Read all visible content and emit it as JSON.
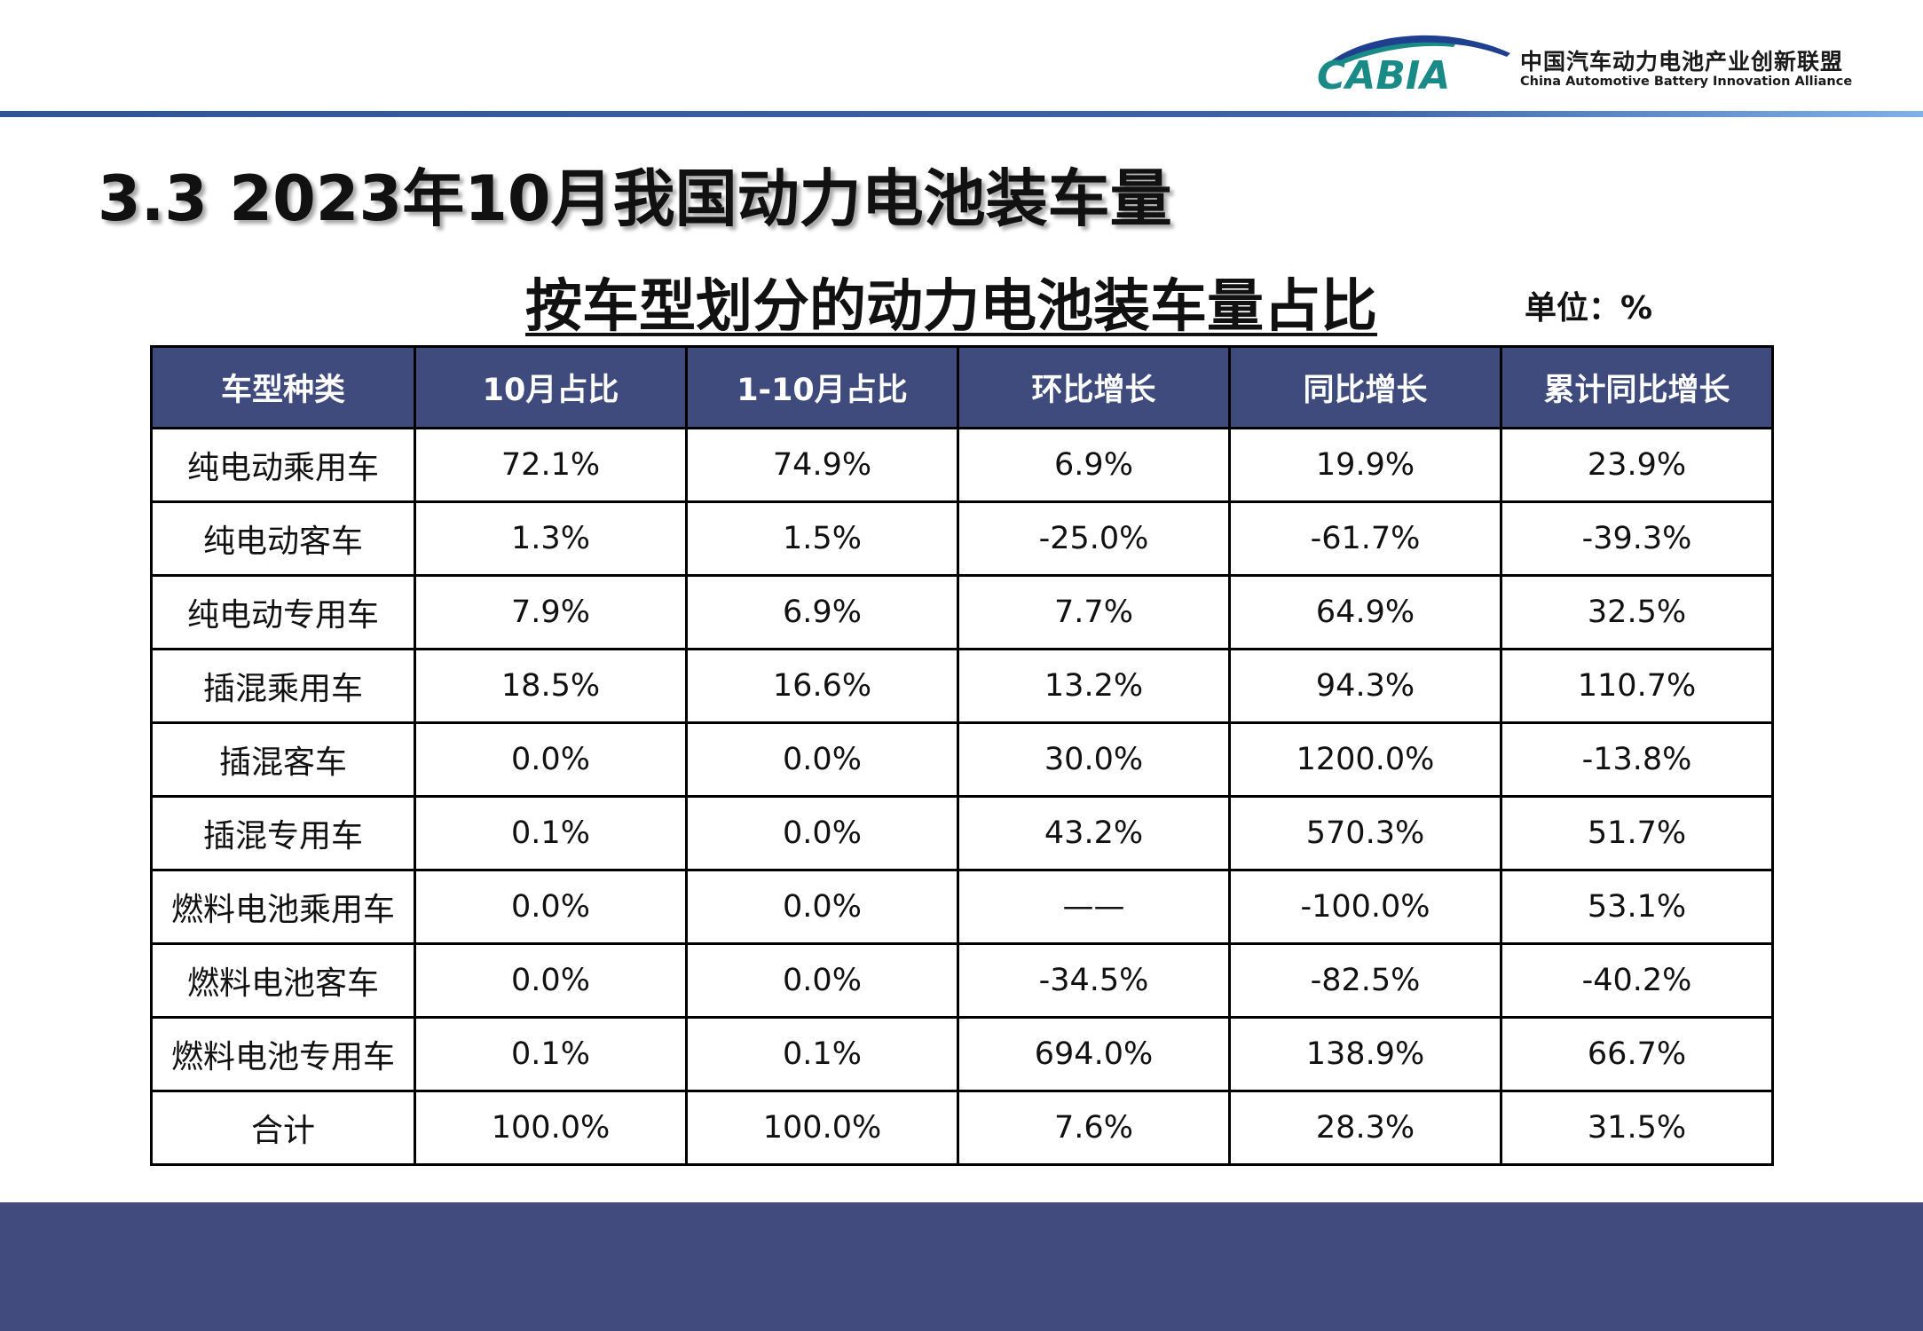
{
  "logo": {
    "abbr": "CABIA",
    "org_cn": "中国汽车动力电池产业创新联盟",
    "org_en": "China Automotive Battery Innovation Alliance"
  },
  "page_title": "3.3 2023年10月我国动力电池装车量",
  "table_title": "按车型划分的动力电池装车量占比",
  "unit_label": "单位：%",
  "table": {
    "headers": [
      "车型种类",
      "10月占比",
      "1-10月占比",
      "环比增长",
      "同比增长",
      "累计同比增长"
    ],
    "rows": [
      [
        "纯电动乘用车",
        "72.1%",
        "74.9%",
        "6.9%",
        "19.9%",
        "23.9%"
      ],
      [
        "纯电动客车",
        "1.3%",
        "1.5%",
        "-25.0%",
        "-61.7%",
        "-39.3%"
      ],
      [
        "纯电动专用车",
        "7.9%",
        "6.9%",
        "7.7%",
        "64.9%",
        "32.5%"
      ],
      [
        "插混乘用车",
        "18.5%",
        "16.6%",
        "13.2%",
        "94.3%",
        "110.7%"
      ],
      [
        "插混客车",
        "0.0%",
        "0.0%",
        "30.0%",
        "1200.0%",
        "-13.8%"
      ],
      [
        "插混专用车",
        "0.1%",
        "0.0%",
        "43.2%",
        "570.3%",
        "51.7%"
      ],
      [
        "燃料电池乘用车",
        "0.0%",
        "0.0%",
        "——",
        "-100.0%",
        "53.1%"
      ],
      [
        "燃料电池客车",
        "0.0%",
        "0.0%",
        "-34.5%",
        "-82.5%",
        "-40.2%"
      ],
      [
        "燃料电池专用车",
        "0.1%",
        "0.1%",
        "694.0%",
        "138.9%",
        "66.7%"
      ],
      [
        "合计",
        "100.0%",
        "100.0%",
        "7.6%",
        "28.3%",
        "31.5%"
      ]
    ]
  },
  "colors": {
    "header_fill": "#3f4a7d",
    "footer_band": "#414b7e",
    "logo_teal": "#1a8a86",
    "logo_navy": "#1f3f8f"
  }
}
